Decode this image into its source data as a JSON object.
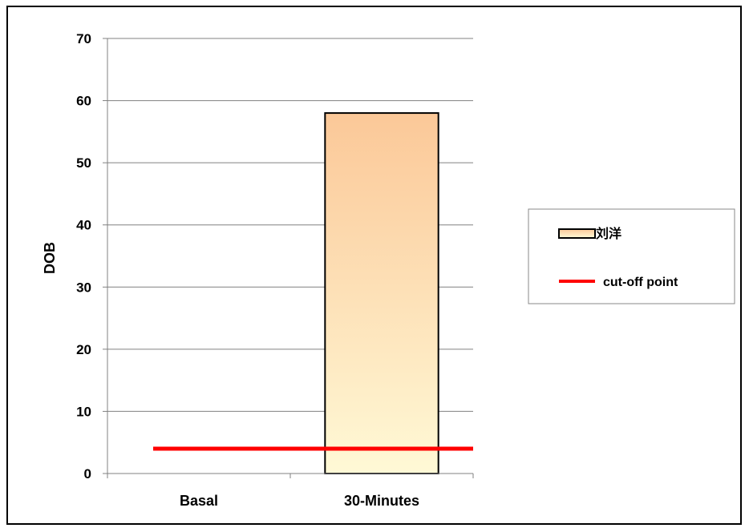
{
  "chart_data": {
    "type": "bar",
    "categories": [
      "Basal",
      "30-Minutes"
    ],
    "series": [
      {
        "name": "刘洋",
        "values": [
          0,
          58
        ]
      }
    ],
    "reference_line": {
      "name": "cut-off point",
      "value": 4,
      "color": "#ff0000"
    },
    "ylabel": "DOB",
    "xlabel": "",
    "ylim": [
      0,
      70
    ],
    "yticks": [
      0,
      10,
      20,
      30,
      40,
      50,
      60,
      70
    ],
    "grid": true,
    "legend_position": "right",
    "bar_gradient": {
      "top": "#fbc898",
      "bottom": "#fff9d6"
    }
  }
}
